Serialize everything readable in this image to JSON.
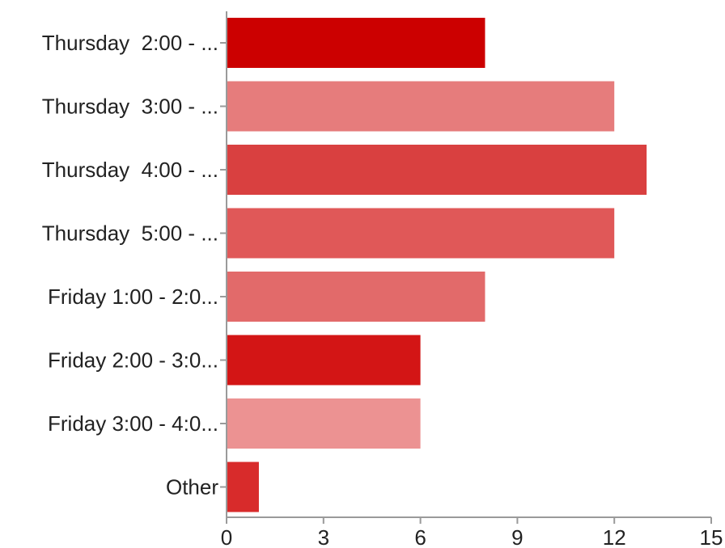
{
  "chart_data": {
    "type": "bar",
    "orientation": "horizontal",
    "categories": [
      "Thursday  2:00 - ...",
      "Thursday  3:00 - ...",
      "Thursday  4:00 - ...",
      "Thursday  5:00 - ...",
      "Friday 1:00 - 2:0...",
      "Friday 2:00 - 3:0...",
      "Friday 3:00 - 4:0...",
      "Other"
    ],
    "values": [
      8,
      12,
      13,
      12,
      8,
      6,
      6,
      1
    ],
    "colors": [
      "#cc0000",
      "#e67c7c",
      "#d94040",
      "#e05858",
      "#e26a6a",
      "#d31515",
      "#ec9292",
      "#d82b2b"
    ],
    "xlim": [
      0,
      15
    ],
    "xticks": [
      "0",
      "3",
      "6",
      "9",
      "12",
      "15"
    ],
    "title": "",
    "xlabel": "",
    "ylabel": "",
    "grid": false,
    "legend": "none"
  }
}
